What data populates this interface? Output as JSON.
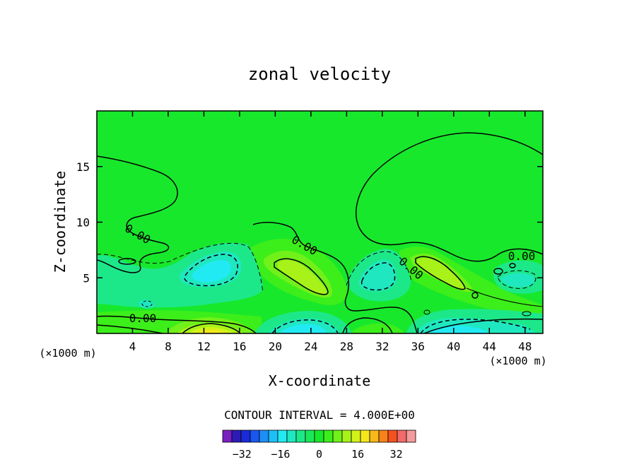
{
  "chart_data": {
    "type": "heatmap",
    "title": "zonal velocity",
    "xlabel": "X-coordinate",
    "ylabel": "Z-coordinate",
    "x_unit_left": "(×1000 m)",
    "x_unit_right": "(×1000 m)",
    "xlim": [
      0,
      50
    ],
    "ylim": [
      0,
      20
    ],
    "xticks": [
      4,
      8,
      12,
      16,
      20,
      24,
      28,
      32,
      36,
      40,
      44,
      48
    ],
    "yticks": [
      5,
      10,
      15
    ],
    "contour_interval_text": "CONTOUR INTERVAL = 4.000E+00",
    "contour_interval": 4,
    "zero_contour_label": "0.00",
    "colorbar": {
      "levels": [
        -40,
        -36,
        -32,
        -28,
        -24,
        -20,
        -16,
        -12,
        -8,
        -4,
        0,
        4,
        8,
        12,
        16,
        20,
        24,
        28,
        32,
        36,
        40
      ],
      "tick_labels": [
        "-32",
        "-16",
        "0",
        "16",
        "32"
      ],
      "colors": [
        "#7a1fc0",
        "#2c1bb4",
        "#1a2bd8",
        "#1a56f0",
        "#1d8ef5",
        "#1cc0f7",
        "#22eaf2",
        "#1fe8c0",
        "#1ce88a",
        "#1ae85a",
        "#18e82c",
        "#3cee1a",
        "#72f01a",
        "#a8f21a",
        "#d2f21a",
        "#f5e81a",
        "#f7b81a",
        "#f7821a",
        "#f55020",
        "#f26a6a",
        "#f59a9a"
      ]
    },
    "features": [
      {
        "type": "jet",
        "sign": "positive",
        "x": 23.0,
        "z": 5.5,
        "peak": 12
      },
      {
        "type": "jet",
        "sign": "positive",
        "x": 38.5,
        "z": 6.0,
        "peak": 12
      },
      {
        "type": "jet",
        "sign": "positive",
        "x": 13.0,
        "z": 0.0,
        "peak": 16
      },
      {
        "type": "jet",
        "sign": "negative",
        "x": 13.5,
        "z": 5.5,
        "peak": -16
      },
      {
        "type": "jet",
        "sign": "negative",
        "x": 31.5,
        "z": 5.5,
        "peak": -12
      },
      {
        "type": "jet",
        "sign": "negative",
        "x": 23.0,
        "z": 0.5,
        "peak": -12
      },
      {
        "type": "jet",
        "sign": "negative",
        "x": 40.0,
        "z": 0.5,
        "peak": -12
      },
      {
        "type": "jet",
        "sign": "negative",
        "x": 46.0,
        "z": 4.5,
        "peak": -8
      }
    ]
  }
}
